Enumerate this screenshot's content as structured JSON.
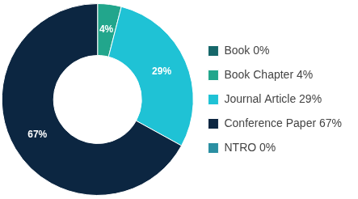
{
  "chart_data": {
    "type": "doughnut",
    "categories": [
      "Book 0%",
      "Book Chapter 4%",
      "Journal Article 29%",
      "Conference Paper 67%",
      "NTRO 0%"
    ],
    "values": [
      0,
      4,
      29,
      67,
      0
    ],
    "value_labels": [
      null,
      "4%",
      "29%",
      "67%",
      null
    ],
    "colors": [
      "#16676a",
      "#22a68c",
      "#1fc2d5",
      "#0c2641",
      "#2a8fa2"
    ],
    "data_labels": true,
    "legend": "right"
  }
}
